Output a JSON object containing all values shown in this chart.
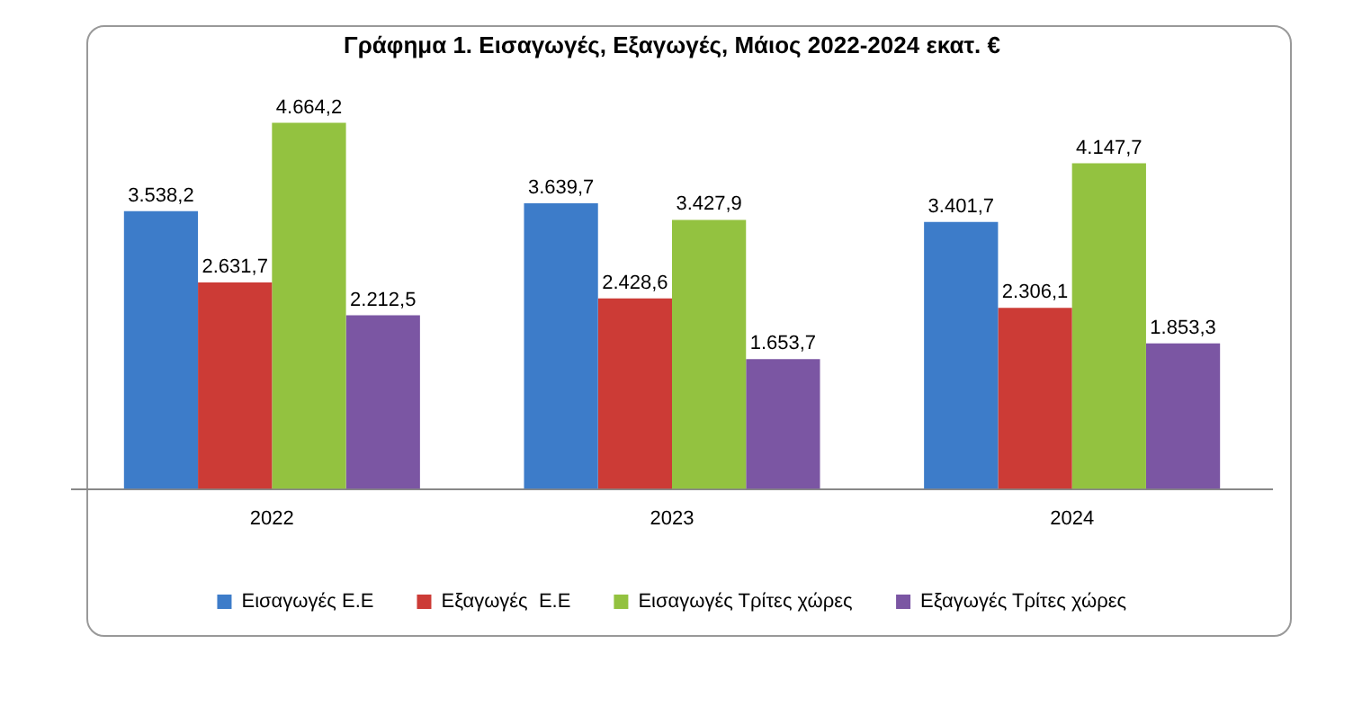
{
  "chart_data": {
    "type": "bar",
    "title": "Γράφημα 1. Εισαγωγές, Εξαγωγές, Μάιος 2022-2024 εκατ. €",
    "categories": [
      "2022",
      "2023",
      "2024"
    ],
    "series": [
      {
        "name": "Εισαγωγές Ε.Ε",
        "color": "#3d7cc9",
        "values": [
          3538.2,
          3639.7,
          3401.7
        ],
        "value_labels": [
          "3.538,2",
          "3.639,7",
          "3.401,7"
        ]
      },
      {
        "name": "Εξαγωγές  Ε.Ε",
        "color": "#cc3b36",
        "values": [
          2631.7,
          2428.6,
          2306.1
        ],
        "value_labels": [
          "2.631,7",
          "2.428,6",
          "2.306,1"
        ]
      },
      {
        "name": "Εισαγωγές Τρίτες χώρες",
        "color": "#93c240",
        "values": [
          4664.2,
          3427.9,
          4147.7
        ],
        "value_labels": [
          "4.664,2",
          "3.427,9",
          "4.147,7"
        ]
      },
      {
        "name": "Εξαγωγές Τρίτες χώρες",
        "color": "#7b56a3",
        "values": [
          2212.5,
          1653.7,
          1853.3
        ],
        "value_labels": [
          "2.212,5",
          "1.653,7",
          "1.853,3"
        ]
      }
    ],
    "legend": "bottom",
    "grid": false
  }
}
